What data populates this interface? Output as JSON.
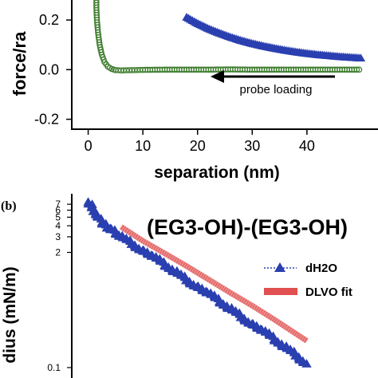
{
  "colors": {
    "approach_series": "#2a3fb0",
    "retract_series": "#3a7a2a",
    "dlvo_fit": "#e05050",
    "axis": "#000000"
  },
  "chart_data": [
    {
      "type": "line",
      "panel": "a",
      "xlabel": "separation (nm)",
      "ylabel": "force/ra",
      "xlim": [
        -3,
        53
      ],
      "ylim": [
        -0.24,
        0.3
      ],
      "x_ticks": [
        0,
        10,
        20,
        30,
        40
      ],
      "x_tick_labels": [
        "0",
        "10",
        "20",
        "30",
        "40"
      ],
      "y_ticks": [
        -0.2,
        0.0,
        0.2
      ],
      "y_tick_labels": [
        "-0.2",
        "0.0",
        "0.2"
      ],
      "annotation": "probe loading",
      "series": [
        {
          "marker": "triangle",
          "x": [
            18,
            20,
            22,
            24,
            26,
            28,
            30,
            32,
            34,
            36,
            38,
            40,
            42,
            44,
            46,
            48,
            50
          ],
          "y": [
            0.21,
            0.185,
            0.164,
            0.146,
            0.13,
            0.116,
            0.104,
            0.094,
            0.085,
            0.077,
            0.07,
            0.064,
            0.059,
            0.055,
            0.051,
            0.048,
            0.045
          ]
        },
        {
          "marker": "circle",
          "x": [
            1.5,
            1.5,
            1.6,
            1.8,
            2.1,
            2.5,
            3.0,
            3.6,
            4.3,
            5.0,
            6,
            8,
            10,
            14,
            18,
            22,
            26,
            30,
            34,
            38,
            42,
            46,
            50
          ],
          "y": [
            0.3,
            0.25,
            0.2,
            0.15,
            0.1,
            0.06,
            0.03,
            0.012,
            0.003,
            -0.002,
            -0.003,
            -0.002,
            -0.001,
            0.0,
            0.0,
            0.0,
            0.001,
            0.0,
            0.0,
            0.0,
            0.0,
            0.0,
            0.0
          ]
        }
      ]
    },
    {
      "type": "scatter",
      "panel": "b",
      "panel_label": "(b)",
      "title": "(EG3-OH)-(EG3-OH)",
      "ylabel": "dius (mN/m)",
      "yscale": "log",
      "xlim": [
        -3,
        53
      ],
      "ylim": [
        0.09,
        9
      ],
      "y_tick_labels": [
        "7",
        "6",
        "5",
        "4",
        "3",
        "2",
        "0.1"
      ],
      "y_tick_values": [
        7,
        6,
        5,
        4,
        3,
        2,
        0.1
      ],
      "series": [
        {
          "name": "dH2O",
          "marker": "triangle",
          "x": [
            0,
            0.5,
            1,
            1.5,
            2,
            2.5,
            3,
            3.5,
            4,
            4.5,
            5,
            6,
            8,
            10,
            12,
            14,
            16,
            18,
            20,
            22,
            24,
            26,
            28,
            30,
            32,
            34,
            36,
            38,
            40
          ],
          "y": [
            7.5,
            6.8,
            6.0,
            5.3,
            4.8,
            4.4,
            4.1,
            3.9,
            3.7,
            3.5,
            3.35,
            3.0,
            2.55,
            2.1,
            1.75,
            1.45,
            1.2,
            0.99,
            0.82,
            0.68,
            0.56,
            0.46,
            0.38,
            0.31,
            0.255,
            0.21,
            0.17,
            0.14,
            0.11
          ]
        },
        {
          "name": "DLVO fit",
          "x": [
            6,
            10,
            14,
            18,
            22,
            26,
            30,
            34,
            40
          ],
          "y": [
            3.9,
            2.7,
            1.95,
            1.4,
            0.99,
            0.7,
            0.5,
            0.35,
            0.2
          ]
        }
      ]
    }
  ]
}
